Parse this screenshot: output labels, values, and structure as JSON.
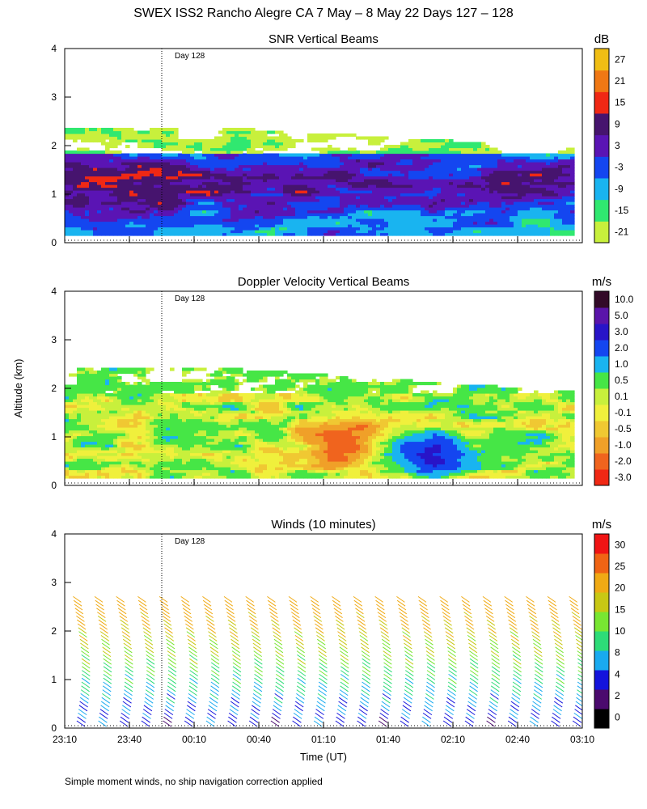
{
  "figure_title": "SWEX ISS2 Rancho Alegre CA    7 May –   8 May 22 Days 127 – 128",
  "footnote": "Simple moment winds, no ship navigation correction applied",
  "y_axis_label": "Altitude (km)",
  "x_axis_label": "Time (UT)",
  "x_tick_labels": [
    "23:10",
    "23:40",
    "00:10",
    "00:40",
    "01:10",
    "01:40",
    "02:10",
    "02:40",
    "03:10"
  ],
  "y_tick_labels": [
    "0",
    "1",
    "2",
    "3",
    "4"
  ],
  "day_marker_label": "Day 128",
  "colors": {
    "snr_scale": [
      "#c8f03c",
      "#30e870",
      "#19b4f0",
      "#1446f0",
      "#5a14b4",
      "#46146e",
      "#f02814",
      "#f07814",
      "#f0be14"
    ],
    "vel_scale": [
      "#f02814",
      "#f0641e",
      "#f0a028",
      "#f0c832",
      "#f0f03c",
      "#c8f03c",
      "#46e646",
      "#19b4f0",
      "#1446f0",
      "#2814c8",
      "#5a14aa",
      "#320a28"
    ],
    "wind_scale": [
      "#000000",
      "#4b0a6e",
      "#1414dc",
      "#19aaf0",
      "#2ddc78",
      "#78e632",
      "#c8c814",
      "#f0aa14",
      "#f06414",
      "#f01414"
    ]
  },
  "chart_data": [
    {
      "type": "heatmap",
      "title": "SNR Vertical Beams",
      "xlabel": "Time (UT)",
      "ylabel": "Altitude (km)",
      "xlim": [
        "23:10",
        "03:10"
      ],
      "ylim": [
        0,
        4
      ],
      "day_marker": {
        "time": "23:55",
        "label": "Day 128"
      },
      "colorbar": {
        "unit": "dB",
        "labels": [
          "-21",
          "-15",
          "-9",
          "-3",
          "3",
          "9",
          "15",
          "21",
          "27"
        ]
      },
      "description_of_field": "strong signal layer 0.2-1.8 km, weaker band near 2-2.4 km"
    },
    {
      "type": "heatmap",
      "title": "Doppler Velocity Vertical Beams",
      "xlabel": "Time (UT)",
      "ylabel": "Altitude (km)",
      "xlim": [
        "23:10",
        "03:10"
      ],
      "ylim": [
        0,
        4
      ],
      "day_marker": {
        "time": "23:55",
        "label": "Day 128"
      },
      "colorbar": {
        "unit": "m/s",
        "labels": [
          "-3.0",
          "-2.0",
          "-1.0",
          "-0.5",
          "-0.1",
          "0.1",
          "0.5",
          "1.0",
          "2.0",
          "3.0",
          "5.0",
          "10.0"
        ]
      }
    },
    {
      "type": "scatter",
      "title": "Winds (10 minutes)",
      "xlabel": "Time (UT)",
      "ylabel": "Altitude (km)",
      "xlim": [
        "23:10",
        "03:10"
      ],
      "ylim": [
        0,
        4
      ],
      "day_marker": {
        "time": "23:55",
        "label": "Day 128"
      },
      "colorbar": {
        "unit": "m/s",
        "labels": [
          "0",
          "2",
          "4",
          "8",
          "10",
          "15",
          "20",
          "25",
          "30"
        ]
      },
      "profile_times": [
        "23:15",
        "23:25",
        "23:35",
        "23:45",
        "23:55",
        "00:05",
        "00:15",
        "00:25",
        "00:35",
        "00:45",
        "00:55",
        "01:05",
        "01:15",
        "01:25",
        "01:35",
        "01:45",
        "01:55",
        "02:05",
        "02:15",
        "02:25",
        "02:35",
        "02:45",
        "02:55",
        "03:05"
      ]
    }
  ]
}
